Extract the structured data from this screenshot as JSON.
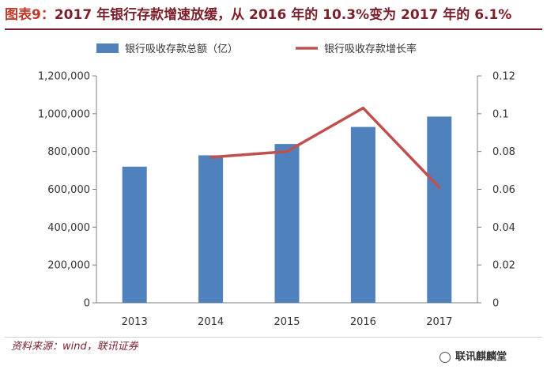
{
  "figure": {
    "label": "图表9：",
    "title": "2017 年银行存款增速放缓，从 2016 年的 10.3%变为 2017 年的 6.1%",
    "source": "资料来源：wind，联讯证券",
    "watermark": "联讯麒麟堂"
  },
  "colors": {
    "title_label": "#c0392b",
    "title_text": "#7b1f2a",
    "bar": "#4f81bd",
    "line": "#c0504d",
    "source": "#7b1f2a"
  },
  "chart_data": {
    "type": "bar",
    "categories": [
      "2013",
      "2014",
      "2015",
      "2016",
      "2017"
    ],
    "series": [
      {
        "name": "银行吸收存款总额（亿）",
        "type": "bar",
        "axis": "left",
        "values": [
          720000,
          780000,
          840000,
          930000,
          985000
        ]
      },
      {
        "name": "银行吸收存款增长率",
        "type": "line",
        "axis": "right",
        "values": [
          null,
          0.077,
          0.08,
          0.103,
          0.061
        ]
      }
    ],
    "y_left": {
      "ylim": [
        0,
        1200000
      ],
      "ticks": [
        0,
        200000,
        400000,
        600000,
        800000,
        1000000,
        1200000
      ],
      "tick_labels": [
        "0",
        "200,000",
        "400,000",
        "600,000",
        "800,000",
        "1,000,000",
        "1,200,000"
      ]
    },
    "y_right": {
      "ylim": [
        0,
        0.12
      ],
      "ticks": [
        0,
        0.02,
        0.04,
        0.06,
        0.08,
        0.1,
        0.12
      ],
      "tick_labels": [
        "0",
        "0.02",
        "0.04",
        "0.06",
        "0.08",
        "0.1",
        "0.12"
      ]
    },
    "legend_position": "top",
    "grid": false
  }
}
